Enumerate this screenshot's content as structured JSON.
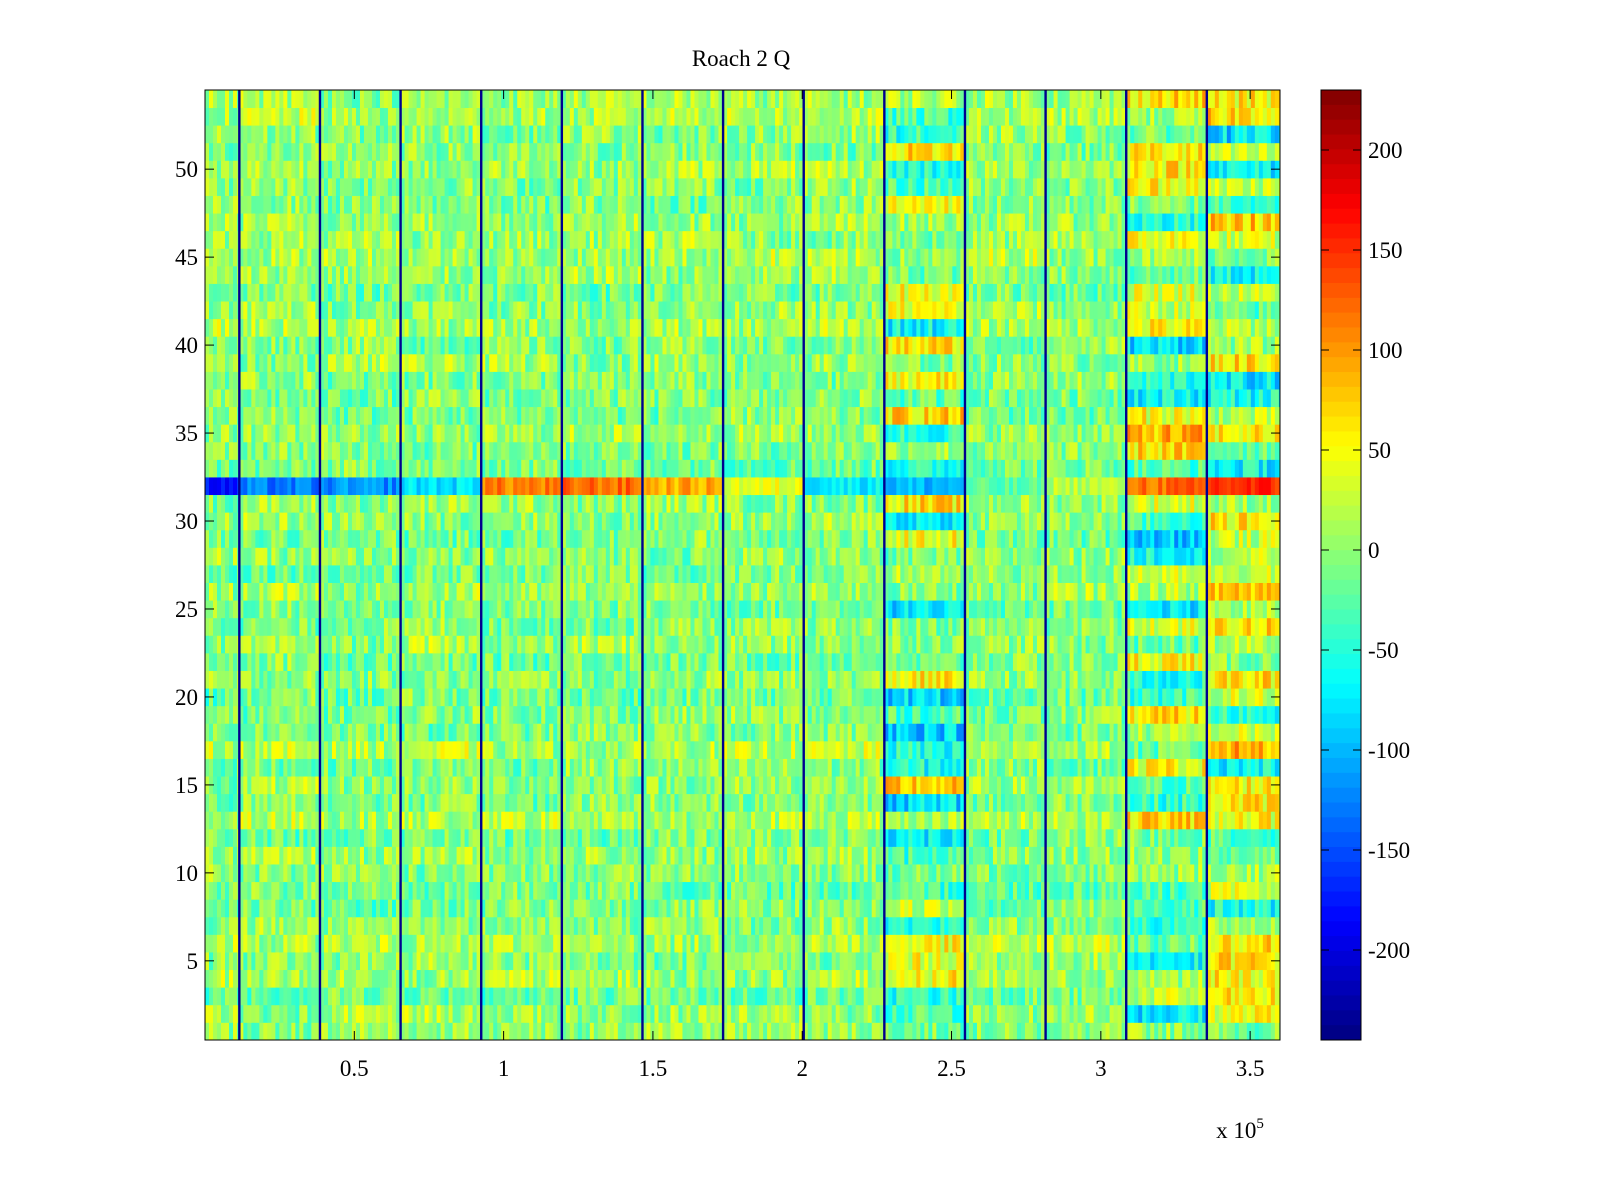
{
  "chart_data": {
    "type": "heatmap",
    "title": "Roach 2 Q",
    "xlabel": "",
    "ylabel": "",
    "x_multiplier_label": "x 10",
    "x_multiplier_exponent": "5",
    "xlim": [
      0,
      3.6
    ],
    "ylim": [
      0.5,
      54.5
    ],
    "x_ticks": [
      0.5,
      1,
      1.5,
      2,
      2.5,
      3,
      3.5
    ],
    "x_tick_labels": [
      "0.5",
      "1",
      "1.5",
      "2",
      "2.5",
      "3",
      "3.5"
    ],
    "y_ticks": [
      5,
      10,
      15,
      20,
      25,
      30,
      35,
      40,
      45,
      50
    ],
    "y_tick_labels": [
      "5",
      "10",
      "15",
      "20",
      "25",
      "30",
      "35",
      "40",
      "45",
      "50"
    ],
    "rows": 54,
    "colormap": "jet",
    "colorbar": {
      "range": [
        -245,
        230
      ],
      "ticks": [
        200,
        150,
        100,
        50,
        0,
        -50,
        -100,
        -150,
        -200
      ],
      "tick_labels": [
        "200",
        "150",
        "100",
        "50",
        "0",
        "-50",
        "-100",
        "-150",
        "-200"
      ]
    },
    "vertical_line_x": [
      0.115,
      0.385,
      0.655,
      0.925,
      1.195,
      1.465,
      1.735,
      2.005,
      2.275,
      2.545,
      2.815,
      3.085,
      3.355
    ],
    "segments_x": [
      [
        0,
        0.115
      ],
      [
        0.115,
        0.385
      ],
      [
        0.385,
        0.655
      ],
      [
        0.655,
        0.925
      ],
      [
        0.925,
        1.195
      ],
      [
        1.195,
        1.465
      ],
      [
        1.465,
        1.735
      ],
      [
        1.735,
        2.005
      ],
      [
        2.005,
        2.275
      ],
      [
        2.275,
        2.545
      ],
      [
        2.545,
        2.815
      ],
      [
        2.815,
        3.085
      ],
      [
        3.085,
        3.355
      ],
      [
        3.355,
        3.6
      ]
    ],
    "row32_segment_values": [
      -180,
      -130,
      -120,
      -80,
      110,
      120,
      90,
      40,
      -70,
      -100,
      -30,
      20,
      120,
      150
    ],
    "segment_variance": [
      "low",
      "low",
      "low",
      "low",
      "low",
      "low",
      "low",
      "low",
      "low",
      "high",
      "low",
      "low",
      "high",
      "high"
    ],
    "typical_value_range": [
      -40,
      40
    ],
    "noise_seed": 7
  }
}
